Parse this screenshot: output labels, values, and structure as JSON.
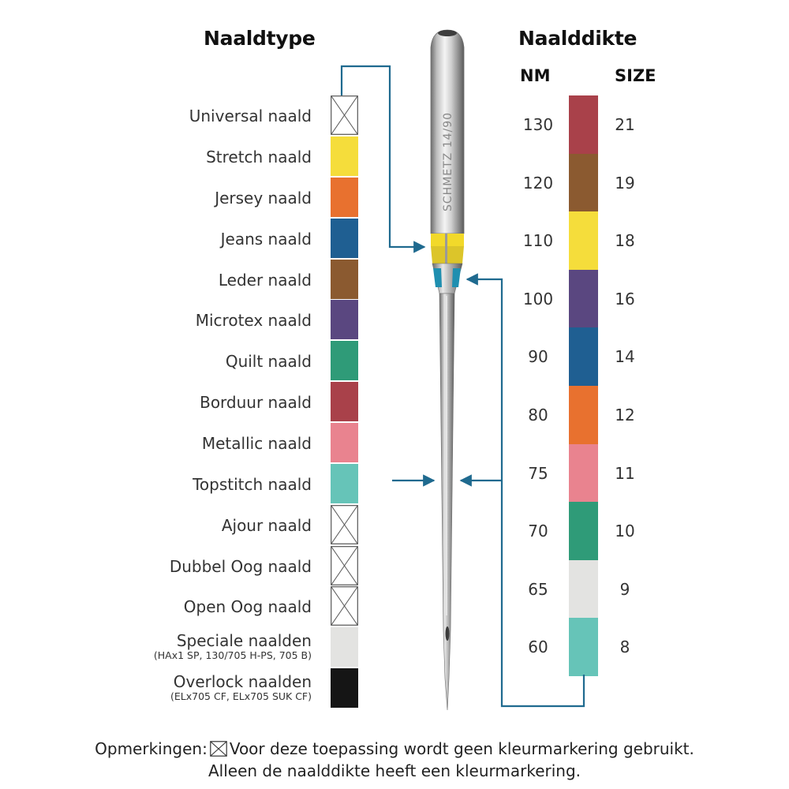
{
  "headings": {
    "type_title": "Naaldtype",
    "size_title": "Naalddikte",
    "nm_header": "NM",
    "size_header": "SIZE"
  },
  "needle_engraving": "SCHMETZ 14/90",
  "needle_types": [
    {
      "label": "Universal naald",
      "sub": "",
      "color": "none"
    },
    {
      "label": "Stretch naald",
      "sub": "",
      "color": "#f5dd3b"
    },
    {
      "label": "Jersey naald",
      "sub": "",
      "color": "#e8712f"
    },
    {
      "label": "Jeans naald",
      "sub": "",
      "color": "#1f5f92"
    },
    {
      "label": "Leder naald",
      "sub": "",
      "color": "#8b5a30"
    },
    {
      "label": "Microtex naald",
      "sub": "",
      "color": "#5a4780"
    },
    {
      "label": "Quilt naald",
      "sub": "",
      "color": "#2f9b78"
    },
    {
      "label": "Borduur naald",
      "sub": "",
      "color": "#a9414a"
    },
    {
      "label": "Metallic naald",
      "sub": "",
      "color": "#e9838f"
    },
    {
      "label": "Topstitch naald",
      "sub": "",
      "color": "#66c4b8"
    },
    {
      "label": "Ajour naald",
      "sub": "",
      "color": "none"
    },
    {
      "label": "Dubbel Oog naald",
      "sub": "",
      "color": "none"
    },
    {
      "label": "Open Oog naald",
      "sub": "",
      "color": "none"
    },
    {
      "label": "Speciale naalden",
      "sub": "(HAx1 SP, 130/705 H-PS, 705 B)",
      "color": "#e3e3e1"
    },
    {
      "label": "Overlock naalden",
      "sub": "(ELx705 CF, ELx705 SUK CF)",
      "color": "#151515"
    }
  ],
  "needle_sizes": [
    {
      "nm": "130",
      "size": "21",
      "color": "#a9414a"
    },
    {
      "nm": "120",
      "size": "19",
      "color": "#8b5a30"
    },
    {
      "nm": "110",
      "size": "18",
      "color": "#f5dd3b"
    },
    {
      "nm": "100",
      "size": "16",
      "color": "#5a4780"
    },
    {
      "nm": "90",
      "size": "14",
      "color": "#1f5f92"
    },
    {
      "nm": "80",
      "size": "12",
      "color": "#e8712f"
    },
    {
      "nm": "75",
      "size": "11",
      "color": "#e9838f"
    },
    {
      "nm": "70",
      "size": "10",
      "color": "#2f9b78"
    },
    {
      "nm": "65",
      "size": "9",
      "color": "#e3e3e1"
    },
    {
      "nm": "60",
      "size": "8",
      "color": "#66c4b8"
    }
  ],
  "footer": {
    "prefix": "Opmerkingen:",
    "line1": "Voor deze toepassing wordt geen kleurmarkering gebruikt.",
    "line2": "Alleen de naalddikte heeft een kleurmarkering."
  },
  "accent_color": "#1f6a8f"
}
